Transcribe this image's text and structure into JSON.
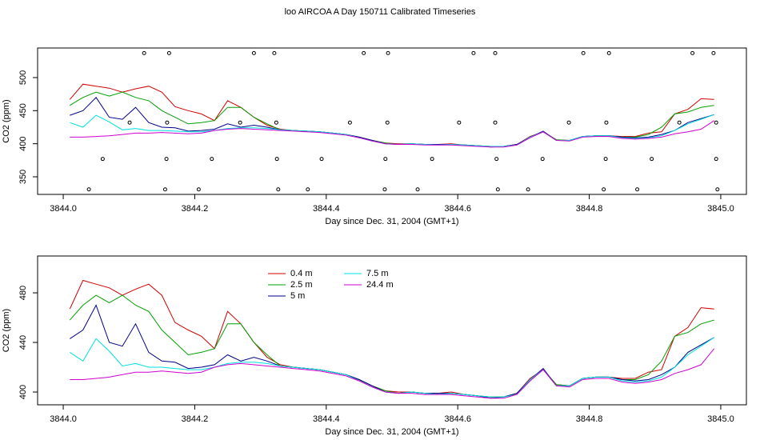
{
  "chart_data": [
    {
      "type": "line",
      "title": "loo AIRCOA A  Day 150711  Calibrated Timeseries",
      "xlabel": "Day since Dec. 31, 2004 (GMT+1)",
      "ylabel": "CO2 (ppm)",
      "xlim": [
        3843.961,
        3845.039
      ],
      "ylim": [
        323.4,
        544.7
      ],
      "xticks": [
        {
          "value": 3844,
          "label": "3844.0"
        },
        3844.2,
        3844.4,
        3844.6,
        3844.8,
        {
          "value": 3845,
          "label": "3845.0"
        }
      ],
      "yticks": [
        350,
        400,
        450,
        500
      ],
      "x": [
        3844.01,
        3844.03,
        3844.05,
        3844.07,
        3844.09,
        3844.11,
        3844.13,
        3844.15,
        3844.17,
        3844.19,
        3844.21,
        3844.23,
        3844.25,
        3844.27,
        3844.29,
        3844.31,
        3844.33,
        3844.35,
        3844.37,
        3844.39,
        3844.41,
        3844.43,
        3844.45,
        3844.47,
        3844.49,
        3844.51,
        3844.53,
        3844.55,
        3844.57,
        3844.59,
        3844.61,
        3844.63,
        3844.65,
        3844.67,
        3844.69,
        3844.71,
        3844.73,
        3844.75,
        3844.77,
        3844.79,
        3844.81,
        3844.83,
        3844.85,
        3844.87,
        3844.89,
        3844.91,
        3844.93,
        3844.95,
        3844.97,
        3844.99
      ],
      "series": [
        {
          "color": "#d00000",
          "values": [
            467,
            490,
            487,
            484,
            478,
            483,
            487,
            478,
            456,
            450,
            445,
            435,
            465,
            455,
            440,
            428,
            422,
            420,
            419,
            418,
            416,
            414,
            410,
            405,
            401,
            400,
            400,
            399,
            399,
            400,
            398,
            397,
            396,
            396,
            399,
            411,
            418,
            406,
            405,
            411,
            412,
            412,
            411,
            411,
            416,
            418,
            445,
            452,
            468,
            467
          ]
        },
        {
          "color": "#00a000",
          "values": [
            458,
            470,
            478,
            472,
            478,
            470,
            465,
            450,
            440,
            430,
            432,
            435,
            455,
            455,
            440,
            430,
            421,
            420,
            419,
            418,
            416,
            414,
            410,
            405,
            401,
            399,
            400,
            399,
            399,
            399,
            398,
            397,
            396,
            396,
            399,
            410,
            418,
            406,
            405,
            411,
            412,
            412,
            410,
            410,
            414,
            425,
            445,
            448,
            455,
            458
          ]
        },
        {
          "color": "#00008b",
          "values": [
            443,
            450,
            470,
            440,
            437,
            455,
            432,
            425,
            424,
            419,
            420,
            422,
            430,
            425,
            428,
            425,
            421,
            420,
            419,
            418,
            416,
            414,
            410,
            405,
            400,
            399,
            400,
            399,
            399,
            399,
            398,
            397,
            395,
            396,
            399,
            410,
            419,
            405,
            405,
            411,
            412,
            412,
            410,
            409,
            410,
            414,
            420,
            432,
            438,
            444
          ]
        },
        {
          "color": "#00e0e0",
          "values": [
            432,
            425,
            443,
            433,
            421,
            423,
            420,
            420,
            419,
            418,
            418,
            420,
            423,
            424,
            424,
            423,
            421,
            420,
            419,
            418,
            416,
            414,
            409,
            404,
            400,
            399,
            400,
            399,
            398,
            399,
            398,
            397,
            396,
            396,
            398,
            410,
            418,
            405,
            405,
            411,
            412,
            412,
            409,
            408,
            409,
            412,
            420,
            430,
            437,
            444
          ]
        },
        {
          "color": "#d000d0",
          "values": [
            410,
            410,
            411,
            412,
            414,
            416,
            416,
            417,
            416,
            415,
            416,
            420,
            422,
            423,
            422,
            421,
            420,
            419,
            418,
            417,
            415,
            413,
            409,
            404,
            400,
            399,
            399,
            398,
            398,
            398,
            397,
            396,
            395,
            395,
            398,
            409,
            418,
            405,
            404,
            410,
            411,
            411,
            408,
            407,
            408,
            410,
            415,
            418,
            422,
            435
          ]
        }
      ],
      "points": {
        "x": [
          3844.123,
          3844.161,
          3844.29,
          3844.321,
          3844.457,
          3844.494,
          3844.624,
          3844.657,
          3844.791,
          3844.83,
          3844.957,
          3844.989,
          3844.101,
          3844.158,
          3844.269,
          3844.324,
          3844.436,
          3844.493,
          3844.602,
          3844.657,
          3844.769,
          3844.826,
          3844.937,
          3844.993,
          3844.06,
          3844.157,
          3844.226,
          3844.325,
          3844.393,
          3844.49,
          3844.561,
          3844.659,
          3844.729,
          3844.825,
          3844.895,
          3844.993,
          3844.039,
          3844.155,
          3844.206,
          3844.327,
          3844.372,
          3844.489,
          3844.539,
          3844.661,
          3844.707,
          3844.822,
          3844.873,
          3844.995
        ],
        "y": [
          537,
          537,
          537,
          537,
          537,
          537,
          537,
          537,
          537,
          537,
          537,
          537,
          432,
          432,
          432,
          432,
          432,
          432,
          432,
          432,
          432,
          432,
          432,
          432,
          377,
          377,
          377,
          377,
          377,
          377,
          377,
          377,
          377,
          377,
          377,
          377,
          331,
          331,
          331,
          331,
          331,
          331,
          331,
          331,
          331,
          331,
          331,
          331
        ]
      }
    },
    {
      "type": "line",
      "xlabel": "Day since Dec. 31, 2004 (GMT+1)",
      "ylabel": "CO2 (ppm)",
      "xlim": [
        3843.961,
        3845.039
      ],
      "ylim": [
        389.7,
        509.7
      ],
      "xticks": [
        {
          "value": 3844,
          "label": "3844.0"
        },
        3844.2,
        3844.4,
        3844.6,
        3844.8,
        {
          "value": 3845,
          "label": "3845.0"
        }
      ],
      "yticks": [
        400,
        440,
        480
      ],
      "x": [
        3844.01,
        3844.03,
        3844.05,
        3844.07,
        3844.09,
        3844.11,
        3844.13,
        3844.15,
        3844.17,
        3844.19,
        3844.21,
        3844.23,
        3844.25,
        3844.27,
        3844.29,
        3844.31,
        3844.33,
        3844.35,
        3844.37,
        3844.39,
        3844.41,
        3844.43,
        3844.45,
        3844.47,
        3844.49,
        3844.51,
        3844.53,
        3844.55,
        3844.57,
        3844.59,
        3844.61,
        3844.63,
        3844.65,
        3844.67,
        3844.69,
        3844.71,
        3844.73,
        3844.75,
        3844.77,
        3844.79,
        3844.81,
        3844.83,
        3844.85,
        3844.87,
        3844.89,
        3844.91,
        3844.93,
        3844.95,
        3844.97,
        3844.99
      ],
      "legend": "top-left",
      "series": [
        {
          "name": "0.4 m",
          "color": "#d00000",
          "values": [
            467,
            490,
            487,
            484,
            478,
            483,
            487,
            478,
            456,
            450,
            445,
            435,
            465,
            455,
            440,
            428,
            422,
            420,
            419,
            418,
            416,
            414,
            410,
            405,
            401,
            400,
            400,
            399,
            399,
            400,
            398,
            397,
            396,
            396,
            399,
            411,
            418,
            406,
            405,
            411,
            412,
            412,
            411,
            411,
            416,
            418,
            445,
            452,
            468,
            467
          ]
        },
        {
          "name": "2.5 m",
          "color": "#00a000",
          "values": [
            458,
            470,
            478,
            472,
            478,
            470,
            465,
            450,
            440,
            430,
            432,
            435,
            455,
            455,
            440,
            430,
            421,
            420,
            419,
            418,
            416,
            414,
            410,
            405,
            401,
            399,
            400,
            399,
            399,
            399,
            398,
            397,
            396,
            396,
            399,
            410,
            418,
            406,
            405,
            411,
            412,
            412,
            410,
            410,
            414,
            425,
            445,
            448,
            455,
            458
          ]
        },
        {
          "name": "5 m",
          "color": "#00008b",
          "values": [
            443,
            450,
            470,
            440,
            437,
            455,
            432,
            425,
            424,
            419,
            420,
            422,
            430,
            425,
            428,
            425,
            421,
            420,
            419,
            418,
            416,
            414,
            410,
            405,
            400,
            399,
            400,
            399,
            399,
            399,
            398,
            397,
            395,
            396,
            399,
            410,
            419,
            405,
            405,
            411,
            412,
            412,
            410,
            409,
            410,
            414,
            420,
            432,
            438,
            444
          ]
        },
        {
          "name": "7.5 m",
          "color": "#00e0e0",
          "values": [
            432,
            425,
            443,
            433,
            421,
            423,
            420,
            420,
            419,
            418,
            418,
            420,
            423,
            424,
            424,
            423,
            421,
            420,
            419,
            418,
            416,
            414,
            409,
            404,
            400,
            399,
            400,
            399,
            398,
            399,
            398,
            397,
            396,
            396,
            398,
            410,
            418,
            405,
            405,
            411,
            412,
            412,
            409,
            408,
            409,
            412,
            420,
            430,
            437,
            444
          ]
        },
        {
          "name": "24.4 m",
          "color": "#d000d0",
          "values": [
            410,
            410,
            411,
            412,
            414,
            416,
            416,
            417,
            416,
            415,
            416,
            420,
            422,
            423,
            422,
            421,
            420,
            419,
            418,
            417,
            415,
            413,
            409,
            404,
            400,
            399,
            399,
            398,
            398,
            398,
            397,
            396,
            395,
            395,
            398,
            409,
            418,
            405,
            404,
            410,
            411,
            411,
            408,
            407,
            408,
            410,
            415,
            418,
            422,
            435
          ]
        }
      ]
    }
  ]
}
